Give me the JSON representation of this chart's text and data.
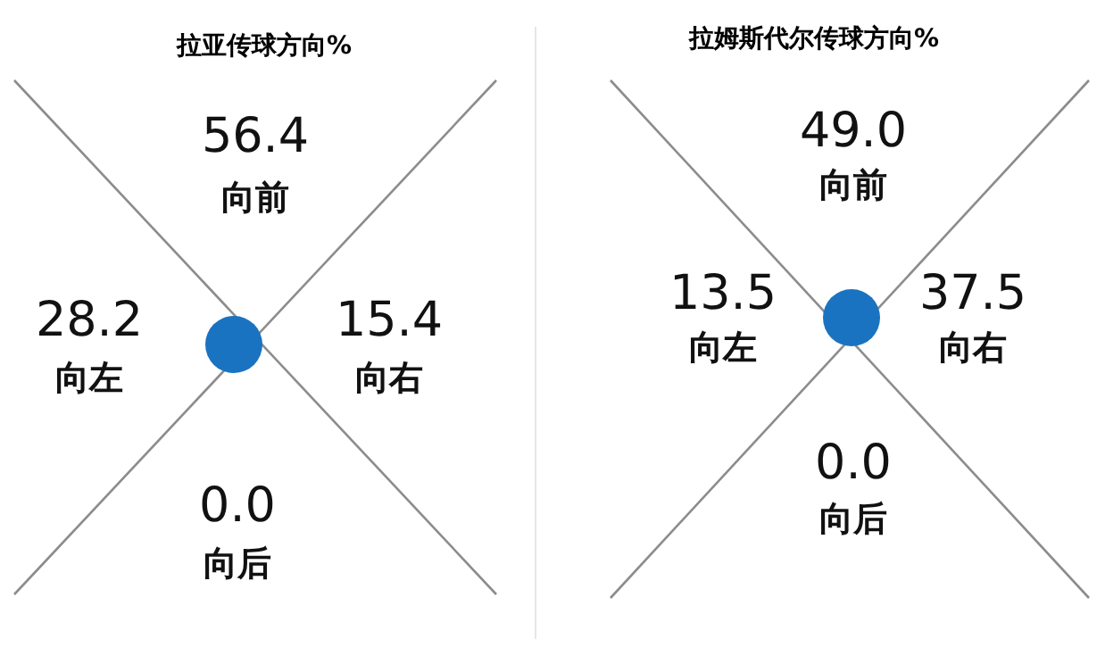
{
  "chart_data": [
    {
      "type": "other",
      "title": "拉亚传球方向%",
      "categories": [
        "向前",
        "向左",
        "向右",
        "向后"
      ],
      "values": [
        56.4,
        28.2,
        15.4,
        0.0
      ],
      "value_labels": [
        "56.4",
        "28.2",
        "15.4",
        "0.0"
      ]
    },
    {
      "type": "other",
      "title": "拉姆斯代尔传球方向%",
      "categories": [
        "向前",
        "向左",
        "向右",
        "向后"
      ],
      "values": [
        49.0,
        13.5,
        37.5,
        0.0
      ],
      "value_labels": [
        "49.0",
        "13.5",
        "37.5",
        "0.0"
      ]
    }
  ]
}
